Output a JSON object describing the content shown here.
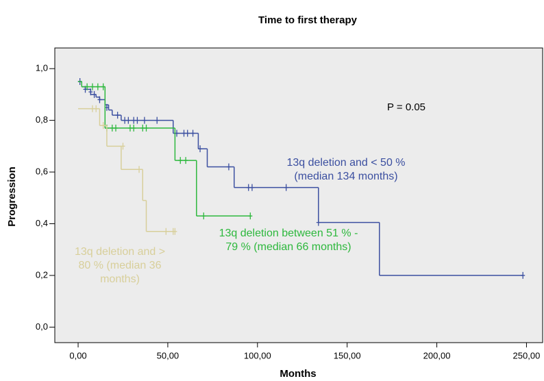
{
  "chart_data": {
    "type": "step",
    "title": "Time to first therapy",
    "x_label": "Months",
    "y_label": "Progression",
    "xlim": [
      -13,
      259
    ],
    "ylim": [
      -0.06,
      1.08
    ],
    "xticks": [
      {
        "value": 0,
        "label": "0,00"
      },
      {
        "value": 50,
        "label": "50,00"
      },
      {
        "value": 100,
        "label": "100,00"
      },
      {
        "value": 150,
        "label": "150,00"
      },
      {
        "value": 200,
        "label": "200,00"
      },
      {
        "value": 250,
        "label": "250,00"
      }
    ],
    "yticks": [
      {
        "value": 0,
        "label": "0,0"
      },
      {
        "value": 0.2,
        "label": "0,2"
      },
      {
        "value": 0.4,
        "label": "0,4"
      },
      {
        "value": 0.6,
        "label": "0,6"
      },
      {
        "value": 0.8,
        "label": "0,8"
      },
      {
        "value": 1.0,
        "label": "1,0"
      }
    ],
    "series": [
      {
        "name": "13q deletion and < 50 %",
        "color": "#3b4fa0",
        "x": [
          0,
          2,
          4,
          7,
          10,
          12,
          15,
          17,
          19,
          24,
          53,
          67,
          72,
          87,
          134,
          168,
          248
        ],
        "values": [
          0.95,
          0.93,
          0.92,
          0.9,
          0.89,
          0.88,
          0.86,
          0.84,
          0.82,
          0.8,
          0.75,
          0.69,
          0.62,
          0.54,
          0.405,
          0.2,
          0.2
        ],
        "censored": {
          "x": [
            1,
            4,
            7,
            9,
            12,
            16,
            22,
            26,
            28,
            31,
            33,
            37,
            44,
            55,
            59,
            61,
            64,
            68,
            84,
            95,
            97,
            116,
            134,
            248
          ],
          "values": [
            0.95,
            0.92,
            0.91,
            0.9,
            0.88,
            0.85,
            0.82,
            0.8,
            0.8,
            0.8,
            0.8,
            0.8,
            0.8,
            0.75,
            0.75,
            0.75,
            0.75,
            0.69,
            0.62,
            0.54,
            0.54,
            0.54,
            0.405,
            0.2
          ]
        }
      },
      {
        "name": "13q deletion between 51 % - 79 %",
        "color": "#2db83d",
        "x": [
          0,
          2,
          15,
          54,
          66,
          96
        ],
        "values": [
          0.95,
          0.93,
          0.77,
          0.645,
          0.43,
          0.43
        ],
        "censored": {
          "x": [
            5,
            8,
            11,
            14,
            16,
            19,
            21,
            29,
            31,
            36,
            38,
            57,
            60,
            70,
            96
          ],
          "values": [
            0.93,
            0.93,
            0.93,
            0.93,
            0.77,
            0.77,
            0.77,
            0.77,
            0.77,
            0.77,
            0.77,
            0.645,
            0.645,
            0.43,
            0.43
          ]
        }
      },
      {
        "name": "13q deletion and > 80 %",
        "color": "#d8cf9a",
        "x": [
          0,
          12,
          16,
          24,
          36,
          38,
          54
        ],
        "values": [
          0.845,
          0.78,
          0.7,
          0.61,
          0.49,
          0.37,
          0.37
        ],
        "censored": {
          "x": [
            8,
            10,
            14,
            25,
            34,
            49,
            53,
            54
          ],
          "values": [
            0.845,
            0.845,
            0.78,
            0.7,
            0.61,
            0.37,
            0.37,
            0.37
          ]
        }
      }
    ],
    "annotations": [
      {
        "lines": [
          "P = 0.05"
        ],
        "color": "#000000"
      },
      {
        "lines": [
          "13q deletion and < 50 %",
          "(median 134 months)"
        ],
        "color": "#3b4fa0"
      },
      {
        "lines": [
          "13q deletion between 51 % -",
          "79 % (median 66 months)"
        ],
        "color": "#2db83d"
      },
      {
        "lines": [
          "13q deletion and >",
          "80 % (median 36",
          "months)"
        ],
        "color": "#d8cf9a"
      }
    ]
  }
}
